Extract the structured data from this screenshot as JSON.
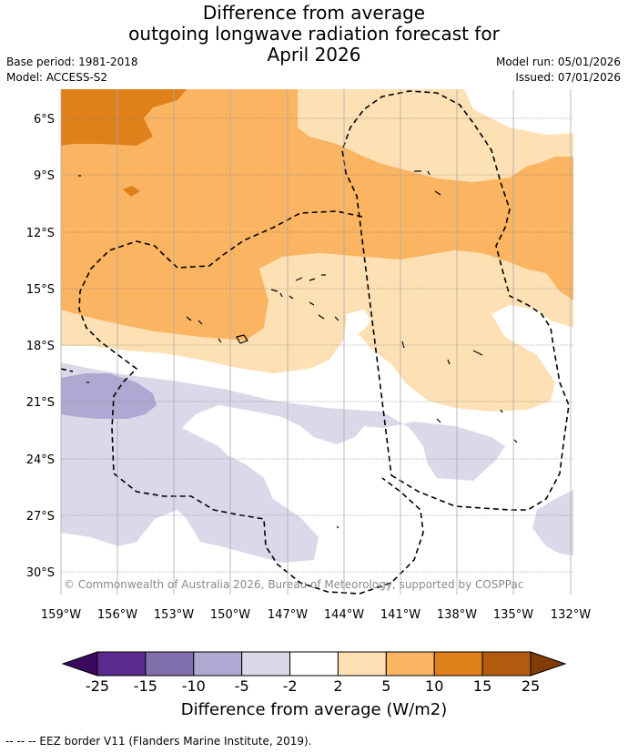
{
  "title": {
    "line1": "Difference from average",
    "line2": "outgoing longwave radiation forecast for",
    "line3": "April 2026"
  },
  "meta": {
    "base_period": "Base period: 1981-2018",
    "model": "Model: ACCESS-S2",
    "model_run": "Model run: 05/01/2026",
    "issued": "Issued: 07/01/2026"
  },
  "map": {
    "lat_labels": [
      "6°S",
      "9°S",
      "12°S",
      "15°S",
      "18°S",
      "21°S",
      "24°S",
      "27°S",
      "30°S"
    ],
    "lon_labels": [
      "159°W",
      "156°W",
      "153°W",
      "150°W",
      "147°W",
      "144°W",
      "141°W",
      "138°W",
      "135°W",
      "132°W"
    ],
    "copyright": "© Commonwealth of Australia 2026, Bureau of Meteorology, supported by COSPPac"
  },
  "colorbar": {
    "labels": [
      "-25",
      "-15",
      "-10",
      "-5",
      "-2",
      "2",
      "5",
      "10",
      "15",
      "25"
    ],
    "colors": [
      "#5b2a8c",
      "#7f6fac",
      "#b0a8d2",
      "#d9d9ea",
      "#ffffff",
      "#fde0b4",
      "#fbb461",
      "#e0801a",
      "#b35a0f"
    ],
    "under_color": "#3b0a5e",
    "over_color": "#7f3b08",
    "title": "Difference from average (W/m2)"
  },
  "footer": "--  --  -- EEZ border V11 (Flanders Marine Institute, 2019)."
}
